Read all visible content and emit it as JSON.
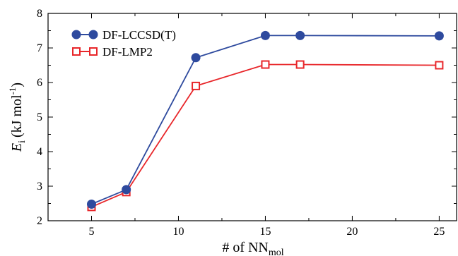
{
  "chart_data": {
    "type": "line",
    "xlabel": "# of NN",
    "xlabel_sub": "mol",
    "ylabel": "E",
    "ylabel_sub": "i",
    "ylabel_unit": "(kJ mol",
    "ylabel_unit_sup": "-1",
    "ylabel_unit_close": ")",
    "xlim": [
      2.5,
      26
    ],
    "ylim": [
      2,
      8
    ],
    "xticks": [
      5,
      10,
      15,
      20,
      25
    ],
    "yticks": [
      2,
      3,
      4,
      5,
      6,
      7,
      8
    ],
    "grid": false,
    "legend_position": "top-left",
    "series": [
      {
        "name": "DF-LCCSD(T)",
        "color": "#2e4a9e",
        "marker": "filled-circle",
        "x": [
          5,
          7,
          11,
          15,
          17,
          25
        ],
        "y": [
          2.48,
          2.9,
          6.72,
          7.36,
          7.36,
          7.35
        ]
      },
      {
        "name": "DF-LMP2",
        "color": "#e8262a",
        "marker": "open-square",
        "x": [
          5,
          7,
          11,
          15,
          17,
          25
        ],
        "y": [
          2.4,
          2.83,
          5.9,
          6.52,
          6.52,
          6.5
        ]
      }
    ]
  }
}
